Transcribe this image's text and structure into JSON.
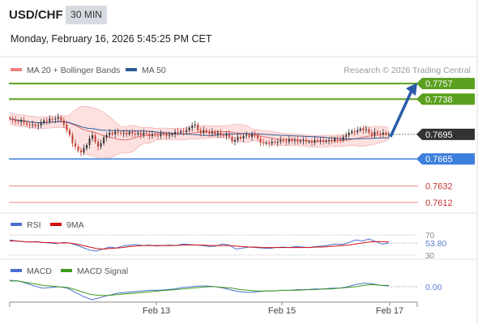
{
  "header": {
    "symbol": "USD/CHF",
    "timeframe": "30 MIN",
    "datetime": "Monday, February 16, 2026 5:45:25 PM CET"
  },
  "colors": {
    "resistance": "#5aa01e",
    "support": "#3d7fdc",
    "support_light": "#e68a8a",
    "price_tag": "#333333",
    "candle_up": "#2d2d2d",
    "candle_down": "#c0392b",
    "bollinger_fill": "#fde0e0",
    "ma20": "#e07070",
    "ma50": "#2d5a96",
    "arrow": "#2a5ca8",
    "rsi": "#4a6fd0",
    "rsi_ma": "#d01010",
    "macd": "#4a6fd0",
    "macd_signal": "#3c9a1e"
  },
  "chart_data": [
    {
      "type": "candlestick",
      "legend": [
        {
          "label": "MA 20 + Bollinger Bands",
          "color": "#f08080"
        },
        {
          "label": "MA 50",
          "color": "#2d5a96"
        }
      ],
      "legend_placement": "top-left",
      "attribution": "Research © 2026 Trading Central",
      "ylim": [
        0.76,
        0.7765
      ],
      "x_ticks": [
        "Feb 13",
        "Feb 15",
        "Feb 17"
      ],
      "levels": [
        {
          "value": 0.7757,
          "label": "0.7757",
          "kind": "resistance"
        },
        {
          "value": 0.7738,
          "label": "0.7738",
          "kind": "resistance"
        },
        {
          "value": 0.7695,
          "label": "0.7695",
          "kind": "current"
        },
        {
          "value": 0.7665,
          "label": "0.7665",
          "kind": "support"
        },
        {
          "value": 0.7632,
          "label": "0.7632",
          "kind": "support-minor"
        },
        {
          "value": 0.7612,
          "label": "0.7612",
          "kind": "support-minor"
        }
      ],
      "close": [
        0.7714,
        0.7713,
        0.7711,
        0.771,
        0.7712,
        0.7709,
        0.7707,
        0.7706,
        0.7707,
        0.7705,
        0.7706,
        0.7709,
        0.7712,
        0.7711,
        0.7714,
        0.7713,
        0.7714,
        0.7716,
        0.7712,
        0.7707,
        0.77,
        0.7694,
        0.7684,
        0.768,
        0.7675,
        0.7673,
        0.7678,
        0.7682,
        0.769,
        0.7694,
        0.7686,
        0.768,
        0.7684,
        0.7691,
        0.7694,
        0.7697,
        0.7695,
        0.7698,
        0.7697,
        0.7696,
        0.7697,
        0.7695,
        0.7698,
        0.7696,
        0.7695,
        0.7697,
        0.7694,
        0.7697,
        0.7696,
        0.7693,
        0.7695,
        0.7694,
        0.7693,
        0.7696,
        0.7695,
        0.7693,
        0.7694,
        0.7695,
        0.7698,
        0.7697,
        0.7699,
        0.7698,
        0.77,
        0.7703,
        0.7706,
        0.7707,
        0.77,
        0.7697,
        0.77,
        0.7698,
        0.7696,
        0.7698,
        0.7695,
        0.7697,
        0.7694,
        0.7693,
        0.7695,
        0.7692,
        0.7686,
        0.7688,
        0.7692,
        0.769,
        0.7693,
        0.7694,
        0.7692,
        0.7695,
        0.7694,
        0.769,
        0.7685,
        0.7684,
        0.7685,
        0.7684,
        0.7686,
        0.7685,
        0.7686,
        0.7688,
        0.7687,
        0.7686,
        0.7689,
        0.7687,
        0.7688,
        0.7686,
        0.7687,
        0.7688,
        0.7686,
        0.7686,
        0.7685,
        0.7688,
        0.7687,
        0.7688,
        0.7686,
        0.7687,
        0.7688,
        0.7687,
        0.769,
        0.7689,
        0.7688,
        0.7692,
        0.7694,
        0.7697,
        0.7699,
        0.7698,
        0.77,
        0.7702,
        0.77,
        0.7701,
        0.7697,
        0.7694,
        0.7698,
        0.7696,
        0.7695,
        0.7697,
        0.7695,
        0.7695
      ],
      "arrow_target": 0.7757
    },
    {
      "type": "line",
      "title": "RSI",
      "series": [
        {
          "name": "RSI",
          "values": [
            60,
            58,
            57,
            56,
            57,
            55,
            54,
            53,
            55,
            54,
            50,
            45,
            40,
            38,
            42,
            46,
            44,
            48,
            50,
            51,
            49,
            50,
            48,
            49,
            50,
            49,
            52,
            51,
            50,
            49,
            47,
            48,
            52,
            50,
            42,
            44,
            46,
            45,
            44,
            43,
            45,
            46,
            45,
            47,
            46,
            45,
            47,
            48,
            50,
            52,
            51,
            55,
            60,
            58,
            62,
            57,
            52,
            53.8
          ]
        },
        {
          "name": "9MA",
          "values": [
            58,
            58,
            57,
            56,
            56,
            55,
            55,
            54,
            54,
            54,
            52,
            49,
            46,
            43,
            42,
            43,
            44,
            45,
            47,
            48,
            49,
            49,
            49,
            49,
            49,
            49,
            50,
            50,
            50,
            50,
            49,
            49,
            49,
            49,
            48,
            47,
            46,
            46,
            45,
            45,
            45,
            45,
            45,
            45,
            45,
            45,
            46,
            46,
            47,
            48,
            49,
            50,
            52,
            54,
            56,
            57,
            57,
            56
          ]
        }
      ],
      "ylim": [
        25,
        75
      ],
      "reference_levels": [
        "70",
        "30"
      ],
      "current_value": "53.80"
    },
    {
      "type": "line",
      "title": "MACD",
      "series": [
        {
          "name": "MACD",
          "values": [
            0.0009,
            0.0008,
            0.0005,
            0.0001,
            -0.0002,
            -0.0001,
            0.0,
            -0.0002,
            -0.0008,
            -0.0014,
            -0.0018,
            -0.0015,
            -0.0012,
            -0.0009,
            -0.0008,
            -0.0007,
            -0.0006,
            -0.0005,
            -0.0005,
            -0.0004,
            -0.0003,
            -0.0001,
            0.0,
            0.0001,
            0.0001,
            0.0,
            -0.0002,
            -0.0005,
            -0.0007,
            -0.0008,
            -0.0007,
            -0.0006,
            -0.0006,
            -0.0005,
            -0.0005,
            -0.0004,
            -0.0004,
            -0.0003,
            -0.0003,
            -0.0002,
            -0.0002,
            0.0,
            0.0003,
            0.0005,
            0.0004,
            0.0002,
            0.0001
          ]
        },
        {
          "name": "MACD Signal",
          "values": [
            0.0008,
            0.0008,
            0.0006,
            0.0004,
            0.0002,
            0.0001,
            0.0,
            -0.0001,
            -0.0004,
            -0.0008,
            -0.0011,
            -0.0012,
            -0.0012,
            -0.0011,
            -0.001,
            -0.0009,
            -0.0008,
            -0.0007,
            -0.0006,
            -0.0005,
            -0.0004,
            -0.0003,
            -0.0002,
            -0.0001,
            0.0,
            0.0,
            -0.0001,
            -0.0002,
            -0.0004,
            -0.0005,
            -0.0006,
            -0.0006,
            -0.0006,
            -0.0005,
            -0.0005,
            -0.0005,
            -0.0004,
            -0.0004,
            -0.0003,
            -0.0003,
            -0.0002,
            -0.0001,
            0.0,
            0.0002,
            0.0003,
            0.0002,
            0.0002
          ]
        }
      ],
      "current_value": "0.00"
    }
  ]
}
